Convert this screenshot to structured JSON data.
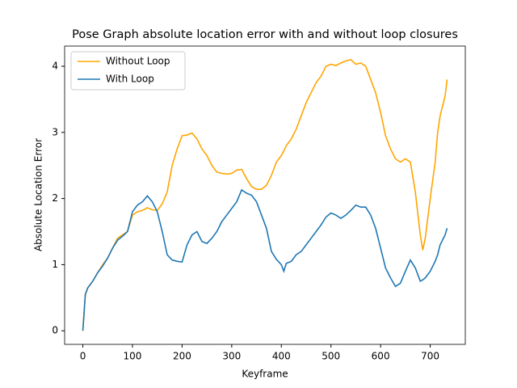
{
  "chart_data": {
    "type": "line",
    "title": "Pose Graph absolute location error with and without loop closures",
    "x_label": "Keyframe",
    "y_label": "Absolute Location Error",
    "x": [
      0,
      5,
      10,
      20,
      30,
      40,
      50,
      60,
      70,
      80,
      90,
      100,
      110,
      120,
      130,
      140,
      150,
      160,
      170,
      180,
      190,
      200,
      210,
      220,
      230,
      240,
      250,
      260,
      270,
      280,
      290,
      300,
      310,
      320,
      330,
      340,
      350,
      360,
      370,
      380,
      390,
      400,
      405,
      410,
      420,
      430,
      440,
      450,
      460,
      470,
      480,
      490,
      500,
      510,
      520,
      530,
      540,
      550,
      560,
      570,
      580,
      590,
      600,
      610,
      620,
      630,
      640,
      650,
      660,
      670,
      680,
      685,
      690,
      700,
      710,
      715,
      720,
      730,
      734
    ],
    "series": [
      {
        "name": "Without Loop",
        "color": "#ffa500",
        "values": [
          0,
          0.55,
          0.65,
          0.75,
          0.88,
          1.0,
          1.1,
          1.25,
          1.4,
          1.45,
          1.5,
          1.75,
          1.8,
          1.82,
          1.86,
          1.83,
          1.82,
          1.92,
          2.1,
          2.5,
          2.75,
          2.95,
          2.96,
          2.99,
          2.9,
          2.75,
          2.65,
          2.5,
          2.4,
          2.38,
          2.37,
          2.38,
          2.43,
          2.44,
          2.3,
          2.18,
          2.14,
          2.14,
          2.2,
          2.35,
          2.55,
          2.65,
          2.72,
          2.8,
          2.9,
          3.05,
          3.25,
          3.45,
          3.6,
          3.75,
          3.85,
          4.0,
          4.03,
          4.01,
          4.05,
          4.08,
          4.1,
          4.03,
          4.05,
          4.0,
          3.8,
          3.6,
          3.3,
          2.95,
          2.75,
          2.6,
          2.55,
          2.6,
          2.55,
          2.1,
          1.45,
          1.22,
          1.4,
          2.0,
          2.55,
          3.0,
          3.25,
          3.55,
          3.8
        ]
      },
      {
        "name": "With Loop",
        "color": "#1f77b4",
        "values": [
          0,
          0.55,
          0.65,
          0.75,
          0.88,
          0.98,
          1.1,
          1.25,
          1.37,
          1.43,
          1.5,
          1.8,
          1.9,
          1.95,
          2.04,
          1.95,
          1.8,
          1.5,
          1.15,
          1.07,
          1.05,
          1.04,
          1.3,
          1.45,
          1.5,
          1.35,
          1.32,
          1.4,
          1.5,
          1.65,
          1.75,
          1.85,
          1.95,
          2.13,
          2.08,
          2.05,
          1.95,
          1.75,
          1.55,
          1.2,
          1.08,
          1.0,
          0.9,
          1.02,
          1.05,
          1.15,
          1.2,
          1.3,
          1.4,
          1.5,
          1.6,
          1.72,
          1.78,
          1.75,
          1.7,
          1.75,
          1.82,
          1.9,
          1.87,
          1.87,
          1.75,
          1.55,
          1.25,
          0.95,
          0.8,
          0.67,
          0.72,
          0.9,
          1.07,
          0.95,
          0.75,
          0.77,
          0.8,
          0.9,
          1.05,
          1.15,
          1.3,
          1.45,
          1.55
        ]
      }
    ],
    "xlim": [
      -36.7,
      770.7
    ],
    "xticks": [
      0,
      100,
      200,
      300,
      400,
      500,
      600,
      700
    ],
    "ylim": [
      -0.205,
      4.305
    ],
    "yticks": [
      0,
      1,
      2,
      3,
      4
    ],
    "legend": "upper left"
  }
}
